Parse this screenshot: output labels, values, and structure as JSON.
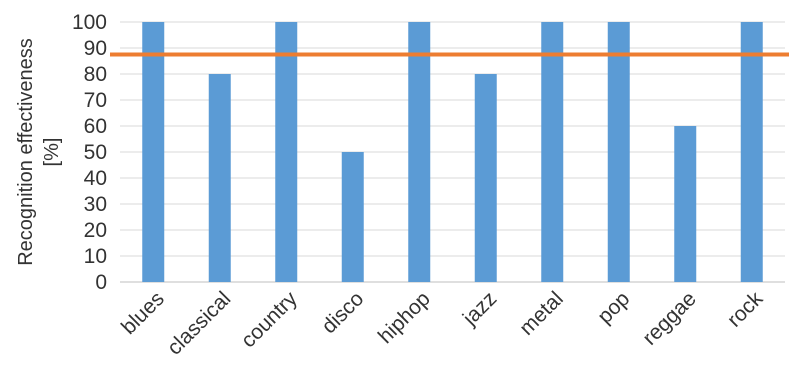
{
  "chart_data": {
    "type": "bar",
    "categories": [
      "blues",
      "classical",
      "country",
      "disco",
      "hiphop",
      "jazz",
      "metal",
      "pop",
      "reggae",
      "rock"
    ],
    "values": [
      100,
      80,
      100,
      50,
      100,
      80,
      100,
      100,
      60,
      100
    ],
    "ylabel_line1": "Recognition effectiveness",
    "ylabel_line2": "[%]",
    "ylim": [
      0,
      100
    ],
    "yticks": [
      0,
      10,
      20,
      30,
      40,
      50,
      60,
      70,
      80,
      90,
      100
    ],
    "reference_line": 87.5,
    "grid": true,
    "legend": "none",
    "colors": {
      "bar": "#5b9bd5",
      "reference_line": "#ed7d31",
      "grid": "#d9d9d9",
      "text": "#333333"
    }
  }
}
